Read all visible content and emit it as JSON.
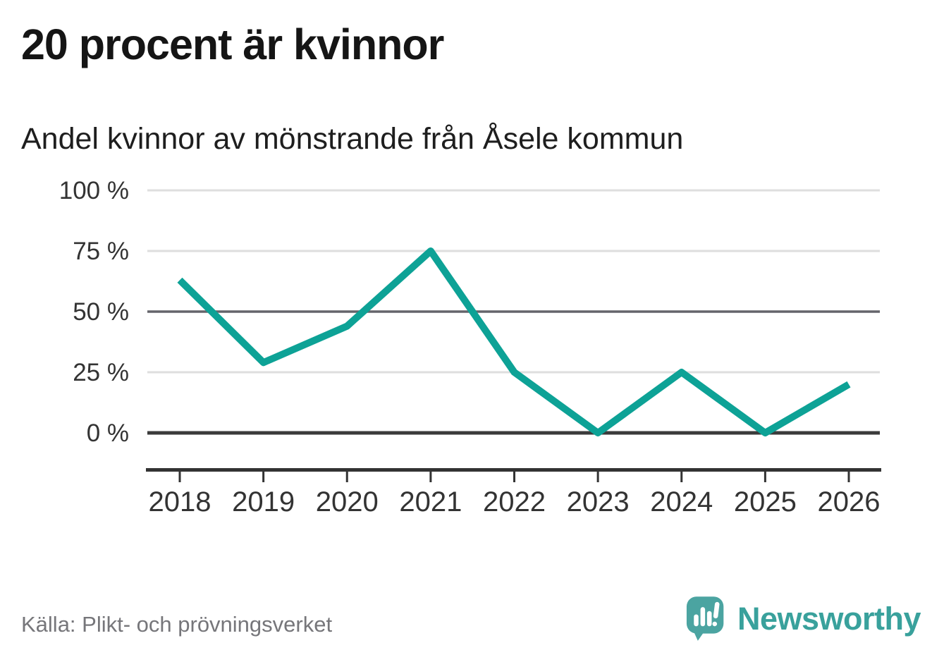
{
  "page": {
    "title": "20 procent är kvinnor",
    "subtitle": "Andel kvinnor av mönstrande från Åsele kommun",
    "source": "Källa: Plikt- och prövningsverket",
    "brand": "Newsworthy"
  },
  "colors": {
    "line": "#0da296",
    "grid_light": "#dedede",
    "grid_mid": "#65656b",
    "grid_dark": "#3b3b3b",
    "axis": "#333333",
    "tick_text": "#333333",
    "title_text": "#151515",
    "source_text": "#76767a",
    "brand_teal": "#4ba4a1",
    "brand_text": "#39a19c"
  },
  "chart_data": {
    "type": "line",
    "title": "20 procent är kvinnor",
    "subtitle": "Andel kvinnor av mönstrande från Åsele kommun",
    "categories": [
      "2018",
      "2019",
      "2020",
      "2021",
      "2022",
      "2023",
      "2024",
      "2025",
      "2026"
    ],
    "series": [
      {
        "name": "Andel kvinnor av mönstrande",
        "values": [
          63,
          29,
          44,
          75,
          25,
          0,
          25,
          0,
          20
        ]
      }
    ],
    "unit": "%",
    "ylim": [
      0,
      100
    ],
    "yticks": [
      100,
      75,
      50,
      25,
      0
    ],
    "ytick_labels": [
      "100 %",
      "75 %",
      "50 %",
      "25 %",
      "0 %"
    ],
    "xlabel": "",
    "ylabel": "",
    "grid": true,
    "legend_position": "none",
    "source": "Källa: Plikt- och prövningsverket"
  }
}
